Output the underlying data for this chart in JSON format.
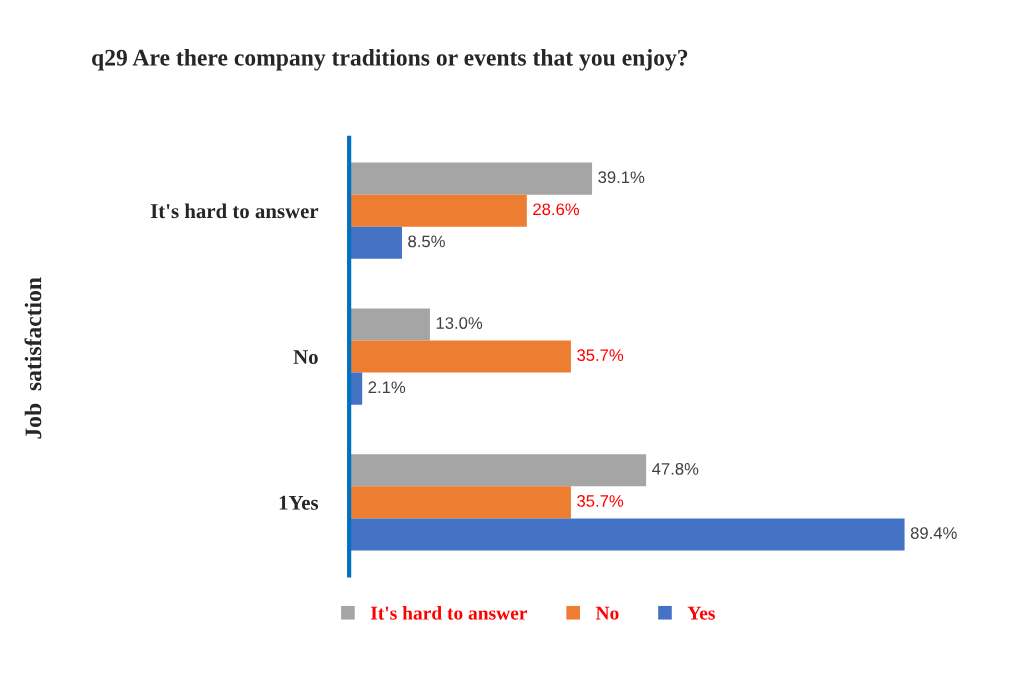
{
  "chart_data": {
    "type": "bar",
    "orientation": "horizontal",
    "title": "q29 Are there company traditions or events that you enjoy?",
    "ylabel": "Job  satisfaction",
    "categories": [
      "It's hard to answer",
      "No",
      "1Yes"
    ],
    "series": [
      {
        "name": "It's hard to answer",
        "color": "#a5a5a5",
        "values": [
          39.1,
          13.0,
          47.8
        ],
        "value_labels": [
          "39.1%",
          "13.0%",
          "47.8%"
        ]
      },
      {
        "name": "No",
        "color": "#ed7d31",
        "values": [
          28.6,
          35.7,
          35.7
        ],
        "value_labels": [
          "28.6%",
          "35.7%",
          "35.7%"
        ]
      },
      {
        "name": "Yes",
        "color": "#4472c4",
        "values": [
          8.5,
          2.1,
          89.4
        ],
        "value_labels": [
          "8.5%",
          "2.1%",
          "89.4%"
        ]
      }
    ],
    "legend": "bottom",
    "tick_labels": "y",
    "grid": false
  }
}
